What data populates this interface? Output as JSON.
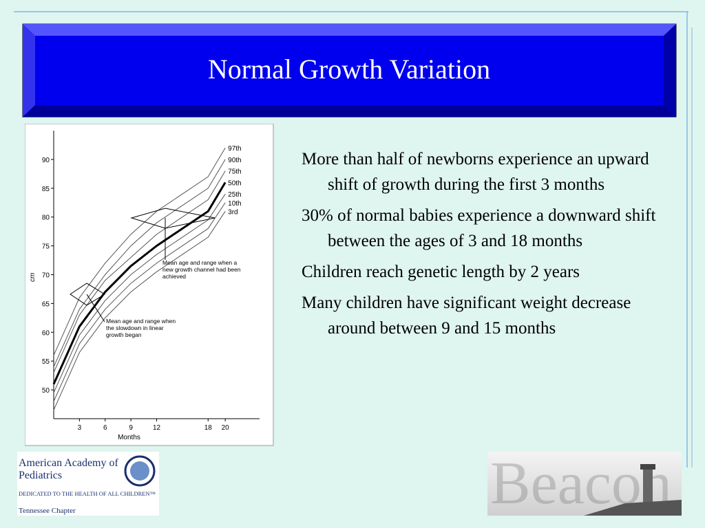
{
  "title": "Normal Growth Variation",
  "bullets": [
    "More than half of newborns experience an upward shift of growth during the first 3 months",
    "30% of normal babies experience a downward shift between the ages of 3 and 18 months",
    "Children reach genetic length by 2 years",
    "Many children have significant weight decrease around between 9 and 15 months"
  ],
  "chart_data": {
    "type": "line",
    "x_label": "Months",
    "y_label": "cm",
    "x": [
      0,
      3,
      6,
      9,
      12,
      18,
      20
    ],
    "xlim": [
      0,
      24
    ],
    "xticks": [
      3,
      6,
      9,
      12,
      18,
      20
    ],
    "ylim": [
      45,
      95
    ],
    "yticks": [
      50,
      55,
      60,
      65,
      70,
      75,
      80,
      85,
      90
    ],
    "series": [
      {
        "name": "97th",
        "color": "#555555",
        "values": [
          56,
          66,
          72,
          77,
          81,
          87,
          92
        ]
      },
      {
        "name": "90th",
        "color": "#555555",
        "values": [
          54,
          64,
          70,
          75,
          79,
          85,
          90
        ]
      },
      {
        "name": "75th",
        "color": "#555555",
        "values": [
          53,
          63,
          69,
          73,
          77,
          83,
          88
        ]
      },
      {
        "name": "50th",
        "color": "#000000",
        "values": [
          51,
          61,
          67,
          71.5,
          75,
          81,
          86
        ]
      },
      {
        "name": "25th",
        "color": "#555555",
        "values": [
          49.5,
          59.5,
          65.5,
          70,
          73.5,
          79.5,
          84
        ]
      },
      {
        "name": "10th",
        "color": "#555555",
        "values": [
          48,
          58,
          64,
          68.5,
          72,
          78,
          82.5
        ]
      },
      {
        "name": "3rd",
        "color": "#555555",
        "values": [
          46.5,
          56.5,
          62.5,
          67,
          70.5,
          76.5,
          81
        ]
      }
    ],
    "annotations": [
      "Mean age and range when a new growth channel had been achieved",
      "Mean age and range when the slowdown in linear growth began"
    ]
  },
  "logo": {
    "name": "American Academy of Pediatrics",
    "motto": "DEDICATED TO THE HEALTH OF ALL CHILDREN™",
    "chapter": "Tennessee Chapter"
  },
  "watermark": "Beacon"
}
